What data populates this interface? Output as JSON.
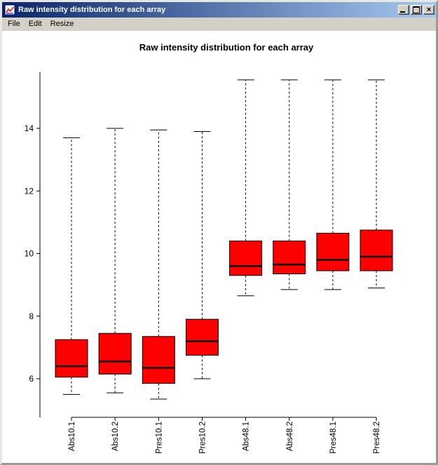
{
  "window": {
    "title": "Raw intensity distribution for each array",
    "controls": {
      "close_glyph": "×"
    }
  },
  "menu": {
    "items": [
      "File",
      "Edit",
      "Resize"
    ]
  },
  "colors": {
    "titlebar_from": "#0a246a",
    "titlebar_to": "#a6caf0",
    "titlebar_text": "#ffffff",
    "chrome": "#d4d0c8"
  },
  "chart_data": {
    "type": "boxplot",
    "title": "Raw intensity distribution for each array",
    "xlabel": "",
    "ylabel": "",
    "categories": [
      "Abs10.1",
      "Abs10.2",
      "Pres10.1",
      "Pres10.2",
      "Abs48.1",
      "Abs48.2",
      "Pres48.1",
      "Pres48.2"
    ],
    "boxes": [
      {
        "low": 5.5,
        "q1": 6.05,
        "median": 6.4,
        "q3": 7.25,
        "high": 13.7
      },
      {
        "low": 5.55,
        "q1": 6.15,
        "median": 6.55,
        "q3": 7.45,
        "high": 14.0
      },
      {
        "low": 5.35,
        "q1": 5.85,
        "median": 6.35,
        "q3": 7.35,
        "high": 13.95
      },
      {
        "low": 6.0,
        "q1": 6.75,
        "median": 7.2,
        "q3": 7.9,
        "high": 13.9
      },
      {
        "low": 8.65,
        "q1": 9.3,
        "median": 9.6,
        "q3": 10.4,
        "high": 15.55
      },
      {
        "low": 8.85,
        "q1": 9.35,
        "median": 9.65,
        "q3": 10.4,
        "high": 15.55
      },
      {
        "low": 8.85,
        "q1": 9.45,
        "median": 9.8,
        "q3": 10.65,
        "high": 15.55
      },
      {
        "low": 8.9,
        "q1": 9.45,
        "median": 9.9,
        "q3": 10.75,
        "high": 15.55
      }
    ],
    "yticks": [
      6,
      8,
      10,
      12,
      14
    ],
    "ylim": [
      5.1,
      15.9
    ],
    "grid": false,
    "legend": "none",
    "colors": {
      "box_fill": "#ff0000",
      "stroke": "#000000"
    }
  }
}
